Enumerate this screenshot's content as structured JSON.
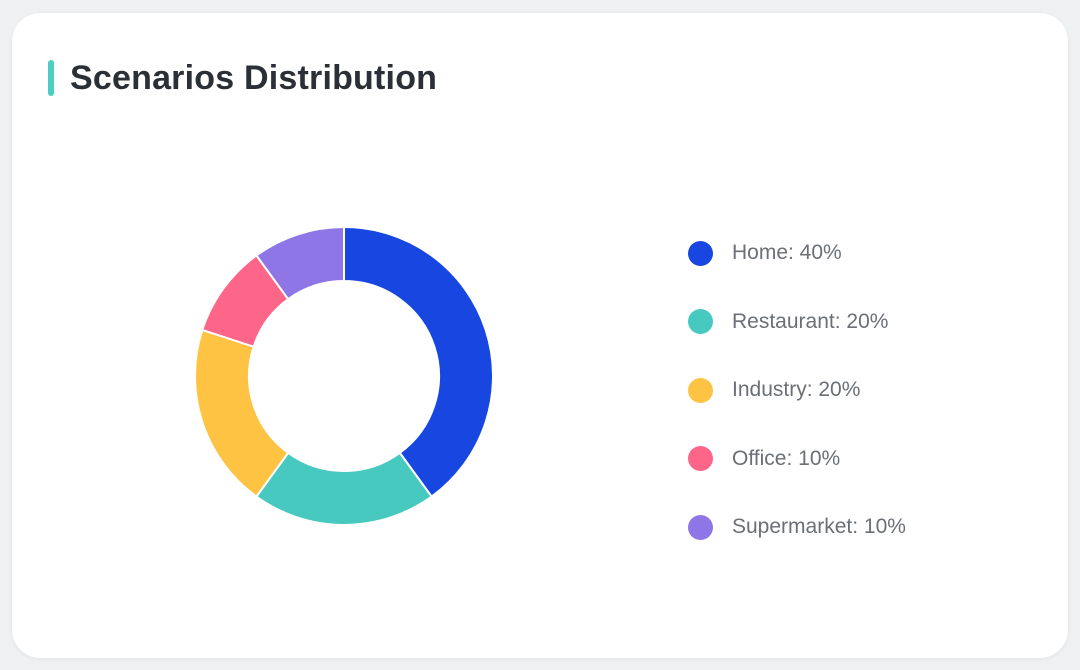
{
  "title": "Scenarios Distribution",
  "colors": {
    "accent": "#4ecdc4"
  },
  "chart_data": {
    "type": "pie",
    "title": "Scenarios Distribution",
    "donut": true,
    "start_angle": "top, clockwise",
    "legend_position": "right",
    "series": [
      {
        "name": "Home",
        "value": 40,
        "label": "Home: 40%",
        "color": "#1746e0"
      },
      {
        "name": "Restaurant",
        "value": 20,
        "label": "Restaurant: 20%",
        "color": "#48c9c0"
      },
      {
        "name": "Industry",
        "value": 20,
        "label": "Industry: 20%",
        "color": "#fec342"
      },
      {
        "name": "Office",
        "value": 10,
        "label": "Office: 10%",
        "color": "#fd6688"
      },
      {
        "name": "Supermarket",
        "value": 10,
        "label": "Supermarket: 10%",
        "color": "#8f76e6"
      }
    ]
  }
}
